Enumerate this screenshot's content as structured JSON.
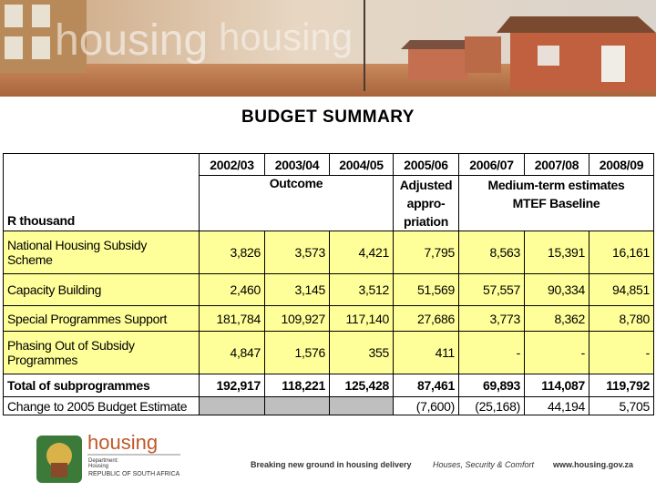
{
  "banner": {
    "watermark": "housing"
  },
  "title": "BUDGET SUMMARY",
  "table": {
    "corner": "R thousand",
    "years": [
      "2002/03",
      "2003/04",
      "2004/05",
      "2005/06",
      "2006/07",
      "2007/08",
      "2008/09"
    ],
    "outcome": "Outcome",
    "adjusted": [
      "Adjusted",
      "appro-",
      "priation"
    ],
    "mtef": [
      "Medium-term estimates",
      "MTEF Baseline"
    ],
    "rows": [
      {
        "label": "National Housing Subsidy Scheme",
        "values": [
          "3,826",
          "3,573",
          "4,421",
          "7,795",
          "8,563",
          "15,391",
          "16,161"
        ]
      },
      {
        "label": "Capacity Building",
        "values": [
          "2,460",
          "3,145",
          "3,512",
          "51,569",
          "57,557",
          "90,334",
          "94,851"
        ]
      },
      {
        "label": "Special Programmes Support",
        "values": [
          "181,784",
          "109,927",
          "117,140",
          "27,686",
          "3,773",
          "8,362",
          "8,780"
        ]
      },
      {
        "label": "Phasing Out of Subsidy Programmes",
        "values": [
          "4,847",
          "1,576",
          "355",
          "411",
          "-",
          "-",
          "-"
        ]
      }
    ],
    "total": {
      "label": "Total of subprogrammes",
      "values": [
        "192,917",
        "118,221",
        "125,428",
        "87,461",
        "69,893",
        "114,087",
        "119,792"
      ]
    },
    "change": {
      "label": "Change to 2005 Budget Estimate",
      "values": [
        null,
        null,
        null,
        "(7,600)",
        "(25,168)",
        "44,194",
        "5,705"
      ]
    }
  },
  "footer": {
    "logo": "housing",
    "department": [
      "Department:",
      "Housing",
      "REPUBLIC OF SOUTH AFRICA"
    ],
    "tagline": "Breaking new ground in housing delivery",
    "slogan": "Houses, Security & Comfort",
    "url": "www.housing.gov.za"
  }
}
